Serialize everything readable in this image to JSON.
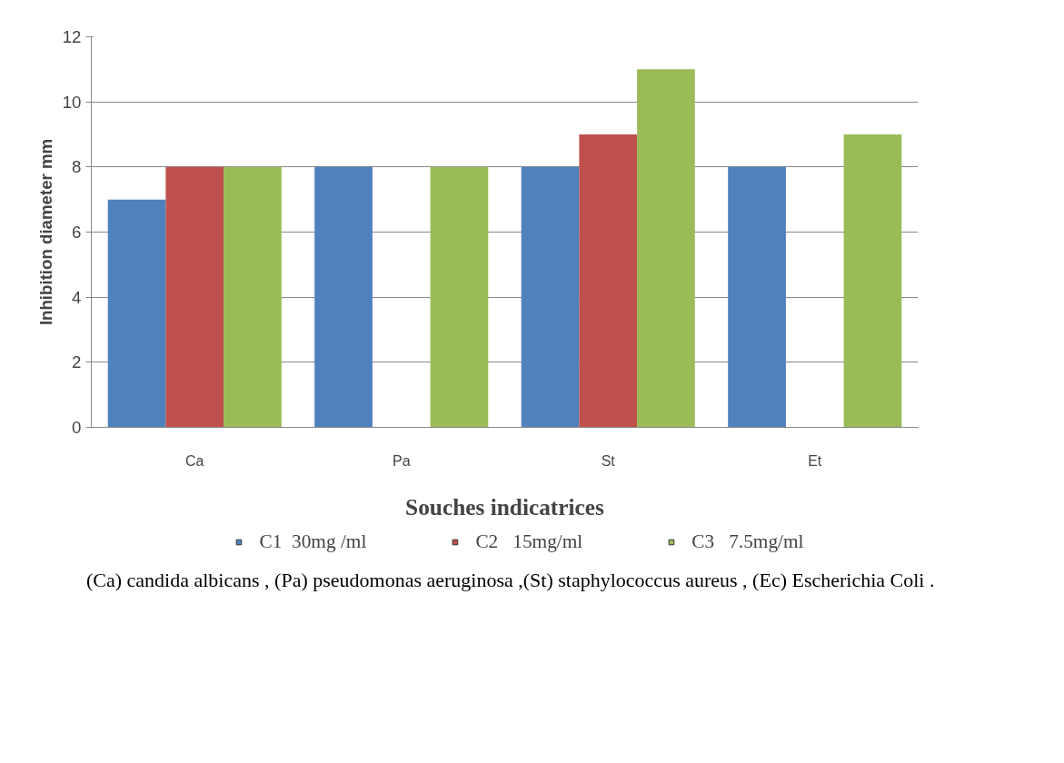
{
  "chart_data": {
    "type": "bar",
    "xlabel": "Souches indicatrices",
    "ylabel": "Inhibition diameter mm",
    "categories": [
      "Ca",
      "Pa",
      "St",
      "Et"
    ],
    "series": [
      {
        "name": "C1  30mg /ml",
        "color": "#4f81bd",
        "values": [
          7,
          8,
          8,
          8
        ]
      },
      {
        "name": "C2   15mg/ml",
        "color": "#c0504d",
        "values": [
          8,
          null,
          9,
          null
        ]
      },
      {
        "name": "C3   7.5mg/ml",
        "color": "#9bbb59",
        "values": [
          8,
          8,
          11,
          9
        ]
      }
    ],
    "ylim": [
      0,
      12
    ],
    "yticks": [
      0,
      2,
      4,
      6,
      8,
      10,
      12
    ],
    "grid": "y",
    "legend": "bottom",
    "annotations": [
      "(Ca) candida albicans , (Pa) pseudomonas aeruginosa ,(St) staphylococcus aureus , (Ec) Escherichia Coli ."
    ]
  }
}
